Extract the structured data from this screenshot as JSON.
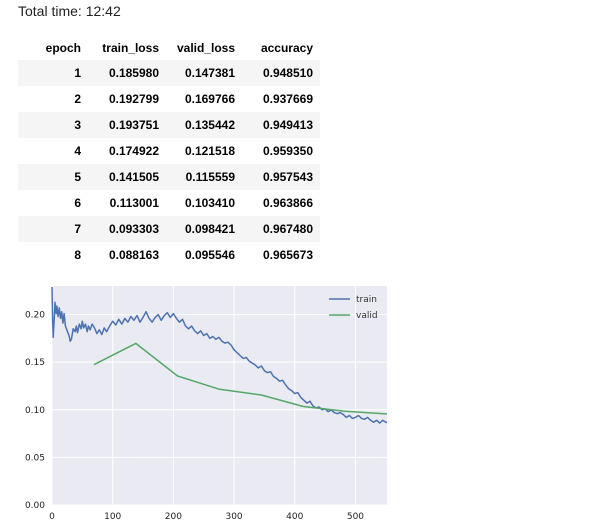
{
  "total_time": {
    "label": "Total time: 12:42"
  },
  "results_table": {
    "headers": [
      "epoch",
      "train_loss",
      "valid_loss",
      "accuracy"
    ],
    "rows": [
      [
        "1",
        "0.185980",
        "0.147381",
        "0.948510"
      ],
      [
        "2",
        "0.192799",
        "0.169766",
        "0.937669"
      ],
      [
        "3",
        "0.193751",
        "0.135442",
        "0.949413"
      ],
      [
        "4",
        "0.174922",
        "0.121518",
        "0.959350"
      ],
      [
        "5",
        "0.141505",
        "0.115559",
        "0.957543"
      ],
      [
        "6",
        "0.113001",
        "0.103410",
        "0.963866"
      ],
      [
        "7",
        "0.093303",
        "0.098421",
        "0.967480"
      ],
      [
        "8",
        "0.088163",
        "0.095546",
        "0.965673"
      ]
    ]
  },
  "chart_data": {
    "type": "line",
    "title": "",
    "xlabel": "",
    "ylabel": "",
    "xlim": [
      0,
      552
    ],
    "ylim": [
      0.0,
      0.23
    ],
    "x_ticks": [
      "0",
      "100",
      "200",
      "300",
      "400",
      "500"
    ],
    "y_ticks": [
      "0.00",
      "0.05",
      "0.10",
      "0.15",
      "0.20"
    ],
    "grid": true,
    "legend_position": "top-right",
    "colors": {
      "background": "#eaeaf2",
      "grid": "#ffffff",
      "train": "#4c72b0",
      "valid": "#55a868"
    },
    "series": [
      {
        "name": "train",
        "color": "#4c72b0",
        "x": [
          0,
          1,
          2,
          3,
          4,
          5,
          6,
          7,
          8,
          10,
          12,
          14,
          16,
          18,
          20,
          22,
          25,
          28,
          30,
          32,
          35,
          38,
          40,
          42,
          45,
          48,
          50,
          52,
          55,
          58,
          60,
          63,
          66,
          70,
          74,
          78,
          82,
          86,
          90,
          95,
          100,
          105,
          110,
          115,
          120,
          125,
          130,
          135,
          140,
          145,
          150,
          155,
          160,
          165,
          170,
          175,
          180,
          185,
          190,
          195,
          200,
          205,
          210,
          215,
          220,
          225,
          230,
          235,
          240,
          245,
          250,
          255,
          260,
          265,
          270,
          275,
          280,
          285,
          290,
          295,
          300,
          305,
          310,
          315,
          320,
          325,
          330,
          335,
          340,
          345,
          350,
          355,
          360,
          365,
          370,
          375,
          380,
          385,
          390,
          395,
          400,
          405,
          410,
          415,
          420,
          425,
          430,
          435,
          440,
          445,
          450,
          455,
          460,
          465,
          470,
          475,
          480,
          485,
          490,
          495,
          500,
          505,
          510,
          515,
          520,
          525,
          530,
          535,
          540,
          545,
          550,
          552
        ],
        "values": [
          0.229,
          0.195,
          0.176,
          0.188,
          0.199,
          0.213,
          0.205,
          0.201,
          0.209,
          0.198,
          0.207,
          0.196,
          0.203,
          0.191,
          0.201,
          0.188,
          0.183,
          0.178,
          0.172,
          0.174,
          0.185,
          0.182,
          0.188,
          0.181,
          0.19,
          0.185,
          0.193,
          0.186,
          0.19,
          0.182,
          0.188,
          0.184,
          0.19,
          0.186,
          0.18,
          0.184,
          0.179,
          0.186,
          0.182,
          0.188,
          0.193,
          0.189,
          0.195,
          0.19,
          0.196,
          0.192,
          0.198,
          0.194,
          0.199,
          0.192,
          0.197,
          0.203,
          0.196,
          0.192,
          0.197,
          0.2,
          0.194,
          0.199,
          0.202,
          0.197,
          0.201,
          0.196,
          0.192,
          0.195,
          0.188,
          0.185,
          0.188,
          0.183,
          0.18,
          0.183,
          0.178,
          0.18,
          0.175,
          0.177,
          0.174,
          0.176,
          0.172,
          0.17,
          0.171,
          0.168,
          0.163,
          0.16,
          0.157,
          0.154,
          0.155,
          0.151,
          0.149,
          0.147,
          0.144,
          0.146,
          0.141,
          0.139,
          0.14,
          0.135,
          0.133,
          0.13,
          0.131,
          0.126,
          0.122,
          0.12,
          0.117,
          0.118,
          0.113,
          0.11,
          0.107,
          0.109,
          0.104,
          0.102,
          0.103,
          0.1,
          0.101,
          0.098,
          0.1,
          0.097,
          0.096,
          0.097,
          0.095,
          0.092,
          0.094,
          0.091,
          0.092,
          0.094,
          0.091,
          0.09,
          0.092,
          0.089,
          0.087,
          0.089,
          0.086,
          0.089,
          0.087,
          0.087
        ]
      },
      {
        "name": "valid",
        "color": "#55a868",
        "x": [
          69,
          138,
          207,
          276,
          345,
          414,
          483,
          552
        ],
        "values": [
          0.147381,
          0.169766,
          0.135442,
          0.121518,
          0.115559,
          0.10341,
          0.098421,
          0.095546
        ]
      }
    ]
  }
}
